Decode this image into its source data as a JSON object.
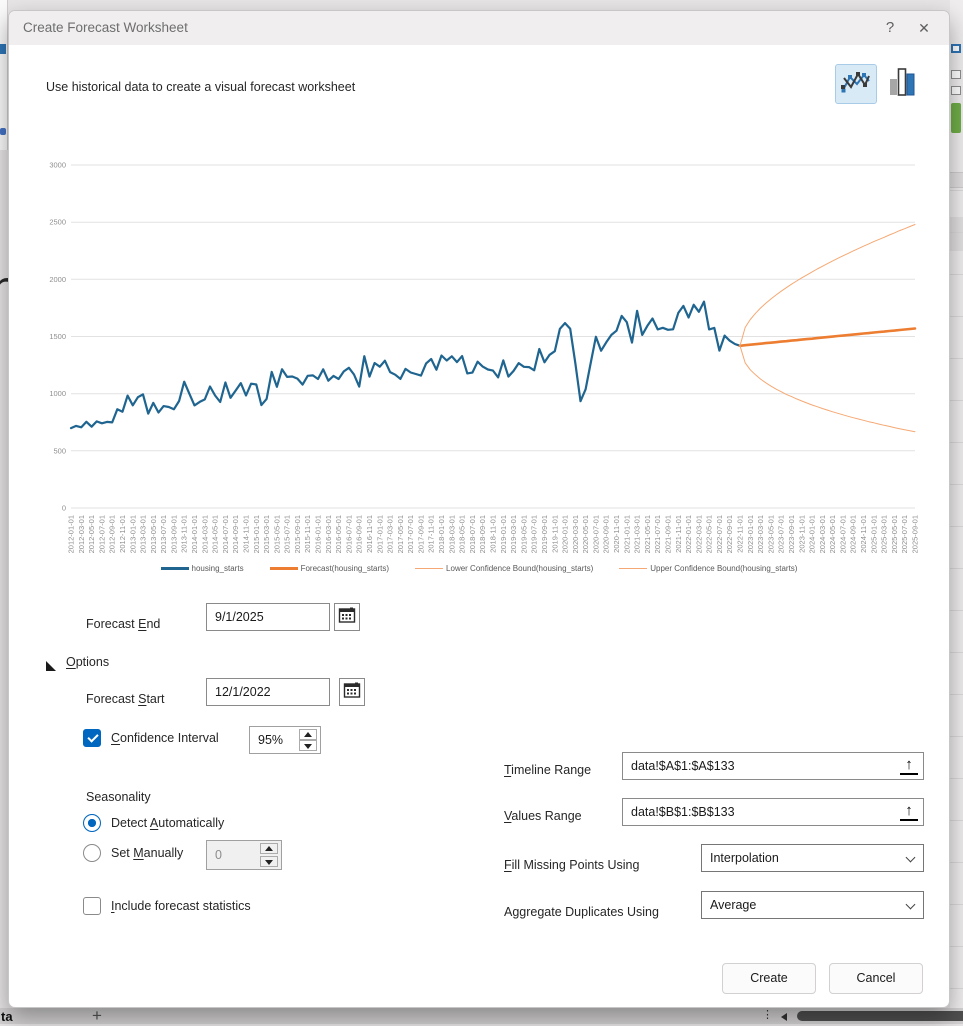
{
  "window": {
    "title": "Create Forecast Worksheet",
    "help_label": "?",
    "close_label": "✕"
  },
  "subtitle": "Use historical data to create a visual forecast worksheet",
  "chart_data": {
    "type": "line",
    "title": "",
    "xlabel": "",
    "ylabel": "",
    "ylim": [
      0,
      3000
    ],
    "yticks": [
      0,
      500,
      1000,
      1500,
      2000,
      2500,
      3000
    ],
    "grid": "horizontal",
    "legend_position": "bottom",
    "x_months_total": 165,
    "x_tick_labels": [
      "2012-01-01",
      "2012-03-01",
      "2012-05-01",
      "2012-07-01",
      "2012-09-01",
      "2012-11-01",
      "2013-01-01",
      "2013-03-01",
      "2013-05-01",
      "2013-07-01",
      "2013-09-01",
      "2013-11-01",
      "2014-01-01",
      "2014-03-01",
      "2014-05-01",
      "2014-07-01",
      "2014-09-01",
      "2014-11-01",
      "2015-01-01",
      "2015-03-01",
      "2015-05-01",
      "2015-07-01",
      "2015-09-01",
      "2015-11-01",
      "2016-01-01",
      "2016-03-01",
      "2016-05-01",
      "2016-07-01",
      "2016-09-01",
      "2016-11-01",
      "2017-01-01",
      "2017-03-01",
      "2017-05-01",
      "2017-07-01",
      "2017-09-01",
      "2017-11-01",
      "2018-01-01",
      "2018-03-01",
      "2018-05-01",
      "2018-07-01",
      "2018-09-01",
      "2018-11-01",
      "2019-01-01",
      "2019-03-01",
      "2019-05-01",
      "2019-07-01",
      "2019-09-01",
      "2019-11-01",
      "2020-01-01",
      "2020-03-01",
      "2020-05-01",
      "2020-07-01",
      "2020-09-01",
      "2020-11-01",
      "2021-01-01",
      "2021-03-01",
      "2021-05-01",
      "2021-07-01",
      "2021-09-01",
      "2021-11-01",
      "2022-01-01",
      "2022-03-01",
      "2022-05-01",
      "2022-07-01",
      "2022-09-01",
      "2022-11-01",
      "2023-01-01",
      "2023-03-01",
      "2023-05-01",
      "2023-07-01",
      "2023-09-01",
      "2023-11-01",
      "2024-01-01",
      "2024-03-01",
      "2024-05-01",
      "2024-07-01",
      "2024-09-01",
      "2024-11-01",
      "2025-01-01",
      "2025-03-01",
      "2025-05-01",
      "2025-07-01",
      "2025-09-01"
    ],
    "series": [
      {
        "name": "housing_starts",
        "color": "#1F6590",
        "width": 2.2,
        "start_index": 0,
        "values": [
          699,
          718,
          706,
          754,
          711,
          757,
          741,
          753,
          749,
          863,
          842,
          983,
          898,
          969,
          994,
          826,
          919,
          835,
          891,
          883,
          863,
          936,
          1105,
          999,
          897,
          928,
          950,
          1063,
          984,
          927,
          1098,
          964,
          1028,
          1092,
          984,
          1087,
          1080,
          900,
          954,
          1190,
          1060,
          1213,
          1147,
          1150,
          1132,
          1079,
          1156,
          1160,
          1128,
          1213,
          1113,
          1155,
          1128,
          1195,
          1226,
          1168,
          1062,
          1328,
          1149,
          1268,
          1236,
          1288,
          1189,
          1166,
          1129,
          1217,
          1185,
          1172,
          1158,
          1265,
          1303,
          1210,
          1334,
          1290,
          1327,
          1276,
          1329,
          1177,
          1184,
          1280,
          1237,
          1211,
          1202,
          1142,
          1291,
          1149,
          1199,
          1267,
          1235,
          1232,
          1204,
          1391,
          1274,
          1340,
          1371,
          1567,
          1617,
          1567,
          1269,
          934,
          1038,
          1273,
          1497,
          1376,
          1448,
          1514,
          1551,
          1680,
          1625,
          1447,
          1725,
          1514,
          1594,
          1657,
          1562,
          1576,
          1559,
          1563,
          1706,
          1768,
          1666,
          1777,
          1716,
          1805,
          1562,
          1575,
          1377,
          1508,
          1463,
          1434,
          1419
        ]
      },
      {
        "name": "Forecast(housing_starts)",
        "color": "#ED7D31",
        "width": 2.6,
        "start_index": 130,
        "values": [
          1419,
          1424,
          1428,
          1433,
          1437,
          1442,
          1446,
          1450,
          1455,
          1459,
          1464,
          1468,
          1473,
          1477,
          1481,
          1486,
          1490,
          1495,
          1499,
          1504,
          1508,
          1512,
          1517,
          1521,
          1526,
          1530,
          1535,
          1539,
          1543,
          1548,
          1552,
          1557,
          1561,
          1566,
          1570
        ]
      },
      {
        "name": "Lower Confidence Bound(housing_starts)",
        "color": "#F5A873",
        "width": 1,
        "start_index": 130,
        "values": [
          1419,
          1269,
          1209,
          1165,
          1127,
          1095,
          1066,
          1040,
          1017,
          994,
          974,
          954,
          936,
          918,
          901,
          886,
          870,
          856,
          841,
          828,
          815,
          802,
          790,
          778,
          767,
          755,
          745,
          734,
          723,
          714,
          703,
          694,
          684,
          676,
          667
        ]
      },
      {
        "name": "Upper Confidence Bound(housing_starts)",
        "color": "#F5A873",
        "width": 1,
        "start_index": 130,
        "values": [
          1419,
          1580,
          1649,
          1703,
          1749,
          1791,
          1828,
          1863,
          1896,
          1927,
          1957,
          1985,
          2013,
          2039,
          2065,
          2090,
          2114,
          2138,
          2161,
          2184,
          2206,
          2227,
          2249,
          2269,
          2290,
          2310,
          2330,
          2349,
          2368,
          2388,
          2406,
          2426,
          2443,
          2462,
          2480
        ]
      }
    ]
  },
  "form": {
    "forecast_end": {
      "label": {
        "text": "Forecast End",
        "u": 9
      },
      "value": "9/1/2025"
    },
    "options_label": {
      "text": "Options",
      "u": 0
    },
    "forecast_start": {
      "label": {
        "text": "Forecast Start",
        "u": 9
      },
      "value": "12/1/2022"
    },
    "confidence": {
      "label": {
        "text": "Confidence Interval",
        "u": 0
      },
      "value": "95%",
      "checked": true
    },
    "seasonality": {
      "heading": "Seasonality",
      "detect_label": {
        "text": "Detect Automatically",
        "u": 7
      },
      "manual_label": {
        "text": "Set Manually",
        "u": 4
      },
      "manual_value": "0"
    },
    "include_stats_label": {
      "text": "Include forecast statistics",
      "u": 0
    },
    "timeline_range": {
      "label": {
        "text": "Timeline Range",
        "u": 0
      },
      "value": "data!$A$1:$A$133"
    },
    "values_range": {
      "label": {
        "text": "Values Range",
        "u": 0
      },
      "value": "data!$B$1:$B$133"
    },
    "fill_missing": {
      "label": {
        "text": "Fill Missing Points Using",
        "u": 0
      },
      "value": "Interpolation"
    },
    "aggregate": {
      "label": {
        "text": "Aggregate Duplicates Using"
      },
      "value": "Average"
    },
    "create_label": "Create",
    "cancel_label": "Cancel"
  },
  "background": {
    "sheet_tab_partial": "ta",
    "add_sheet": "+",
    "dots": "⋮",
    "partial_glyph": "n"
  },
  "colors": {
    "accent_blue": "#0067C0",
    "series_blue": "#1F6590",
    "series_orange": "#ED7D31",
    "bound_orange": "#F5A873"
  }
}
